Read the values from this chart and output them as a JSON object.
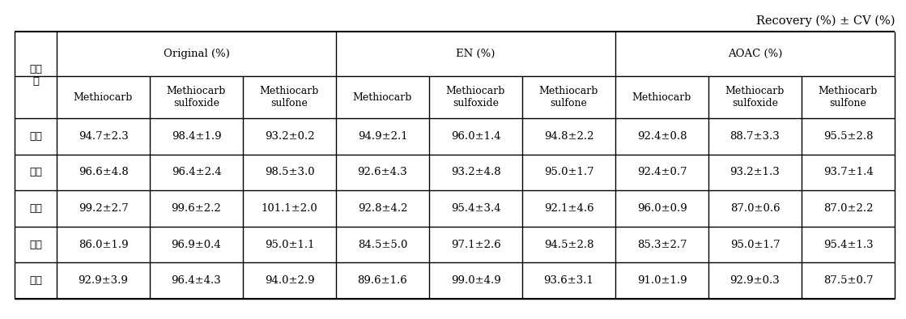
{
  "title": "Recovery (%) ± CV (%)",
  "col1_header": "농산\n물",
  "group_headers": [
    "Original (%)",
    "EN (%)",
    "AOAC (%)"
  ],
  "sub_headers": [
    "Methiocarb",
    "Methiocarb\nsulfoxide",
    "Methiocarb\nsulfone"
  ],
  "row_labels": [
    "감자",
    "고추",
    "감규",
    "대두",
    "현미"
  ],
  "data": [
    [
      "94.7±2.3",
      "98.4±1.9",
      "93.2±0.2",
      "94.9±2.1",
      "96.0±1.4",
      "94.8±2.2",
      "92.4±0.8",
      "88.7±3.3",
      "95.5±2.8"
    ],
    [
      "96.6±4.8",
      "96.4±2.4",
      "98.5±3.0",
      "92.6±4.3",
      "93.2±4.8",
      "95.0±1.7",
      "92.4±0.7",
      "93.2±1.3",
      "93.7±1.4"
    ],
    [
      "99.2±2.7",
      "99.6±2.2",
      "101.1±2.0",
      "92.8±4.2",
      "95.4±3.4",
      "92.1±4.6",
      "96.0±0.9",
      "87.0±0.6",
      "87.0±2.2"
    ],
    [
      "86.0±1.9",
      "96.9±0.4",
      "95.0±1.1",
      "84.5±5.0",
      "97.1±2.6",
      "94.5±2.8",
      "85.3±2.7",
      "95.0±1.7",
      "95.4±1.3"
    ],
    [
      "92.9±3.9",
      "96.4±4.3",
      "94.0±2.9",
      "89.6±1.6",
      "99.0±4.9",
      "93.6±3.1",
      "91.0±1.9",
      "92.9±0.3",
      "87.5±0.7"
    ]
  ],
  "bg_color": "#ffffff",
  "line_color": "#000000",
  "text_color": "#000000",
  "font_size": 9.5,
  "title_font_size": 10.5
}
